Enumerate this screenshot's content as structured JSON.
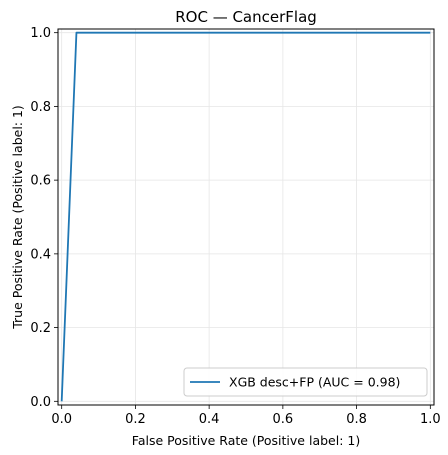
{
  "chart_data": {
    "type": "line",
    "title": "ROC — CancerFlag",
    "xlabel": "False Positive Rate (Positive label: 1)",
    "ylabel": "True Positive Rate (Positive label: 1)",
    "xlim": [
      -0.01,
      1.01
    ],
    "ylim": [
      -0.01,
      1.01
    ],
    "xticks": [
      "0.0",
      "0.2",
      "0.4",
      "0.6",
      "0.8",
      "1.0"
    ],
    "yticks": [
      "0.0",
      "0.2",
      "0.4",
      "0.6",
      "0.8",
      "1.0"
    ],
    "grid": true,
    "legend_position": "bottom-right",
    "series": [
      {
        "name": "XGB desc+FP (AUC = 0.98)",
        "color": "#1f77b4",
        "x": [
          0.0,
          0.0,
          0.04,
          0.04,
          1.0
        ],
        "y": [
          0.0,
          0.0,
          1.0,
          1.0,
          1.0
        ]
      }
    ]
  }
}
